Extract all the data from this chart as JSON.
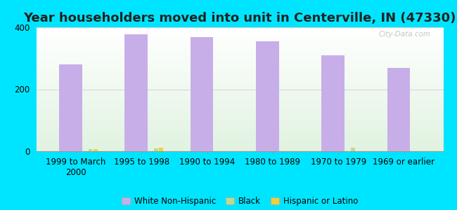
{
  "title": "Year householders moved into unit in Centerville, IN (47330)",
  "categories": [
    "1999 to March\n2000",
    "1995 to 1998",
    "1990 to 1994",
    "1980 to 1989",
    "1970 to 1979",
    "1969 or earlier"
  ],
  "white_non_hispanic": [
    280,
    378,
    368,
    355,
    310,
    270
  ],
  "black": [
    7,
    10,
    0,
    0,
    12,
    0
  ],
  "hispanic_or_latino": [
    7,
    12,
    0,
    0,
    0,
    0
  ],
  "bar_color_white": "#c8aee8",
  "bar_color_black": "#c0d890",
  "bar_color_hispanic": "#f0d040",
  "background_outer": "#00e5ff",
  "ylim": [
    0,
    400
  ],
  "yticks": [
    0,
    200,
    400
  ],
  "title_fontsize": 13,
  "tick_fontsize": 8.5,
  "legend_fontsize": 8.5,
  "watermark": "City-Data.com"
}
